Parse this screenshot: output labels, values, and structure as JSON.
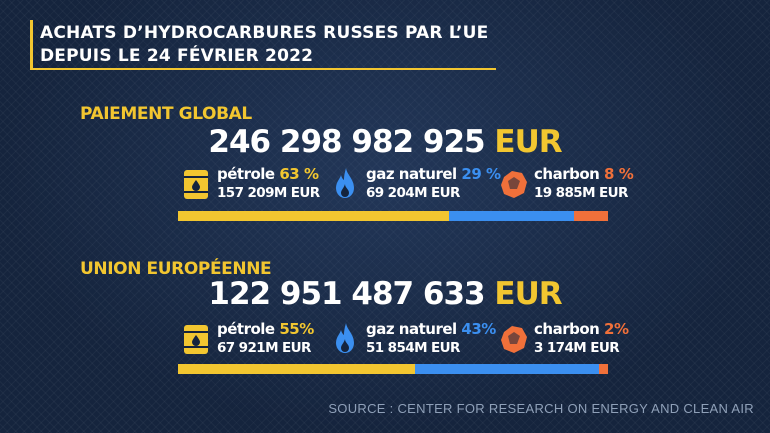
{
  "header": {
    "line1": "ACHATS D’HYDROCARBURES RUSSES PAR L’UE",
    "line2": "DEPUIS LE 24 FÉVRIER 2022"
  },
  "source": "SOURCE : CENTER FOR RESEARCH ON ENERGY AND CLEAN AIR",
  "colors": {
    "accent": "#f2c630",
    "oil": "#f2c630",
    "gas": "#3b8ff0",
    "coal": "#f0703a"
  },
  "chart_data": [
    {
      "type": "bar",
      "title": "PAIEMENT GLOBAL",
      "total_number": "246 298 982 925",
      "currency": "EUR",
      "categories": [
        "pétrole",
        "gaz naturel",
        "charbon"
      ],
      "percent_labels": [
        "63 %",
        "29 %",
        "8 %"
      ],
      "values_pct": [
        63,
        29,
        8
      ],
      "amount_labels": [
        "157 209M EUR",
        "69 204M EUR",
        "19 885M EUR"
      ],
      "values_meur": [
        157209,
        69204,
        19885
      ],
      "icons": [
        "oil-barrel-icon",
        "gas-flame-icon",
        "coal-icon"
      ]
    },
    {
      "type": "bar",
      "title": "UNION EUROPÉENNE",
      "total_number": "122 951 487 633",
      "currency": "EUR",
      "categories": [
        "pétrole",
        "gaz naturel",
        "charbon"
      ],
      "percent_labels": [
        "55%",
        "43%",
        "2%"
      ],
      "values_pct": [
        55,
        43,
        2
      ],
      "amount_labels": [
        "67 921M EUR",
        "51 854M EUR",
        "3 174M EUR"
      ],
      "values_meur": [
        67921,
        51854,
        3174
      ],
      "icons": [
        "oil-barrel-icon",
        "gas-flame-icon",
        "coal-icon"
      ]
    }
  ]
}
